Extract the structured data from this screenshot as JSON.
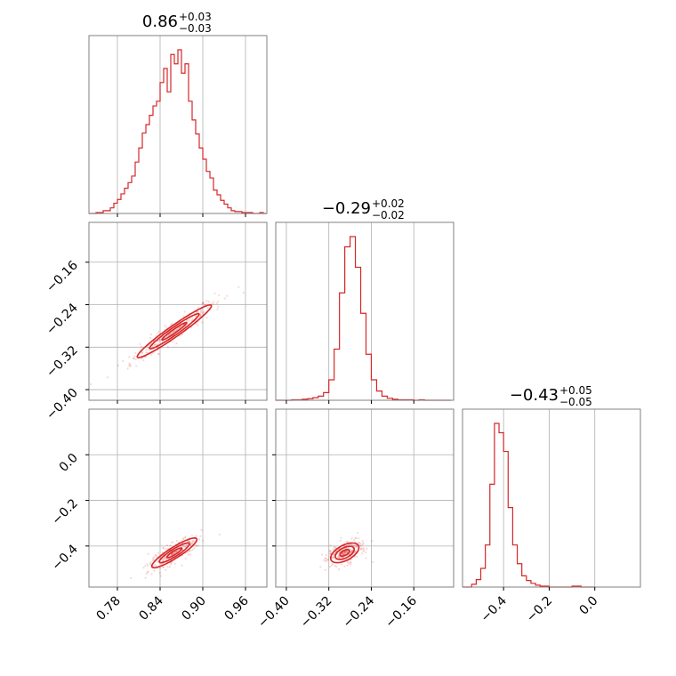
{
  "chart_data": {
    "type": "corner",
    "color": "#d62728",
    "parameters": [
      {
        "id": "p0",
        "title_value": "0.86",
        "title_plus": "+0.03",
        "title_minus": "−0.03",
        "range": [
          0.74,
          0.99
        ],
        "ticks": [
          0.78,
          0.84,
          0.9,
          0.96
        ],
        "tick_labels": [
          "0.78",
          "0.84",
          "0.90",
          "0.96"
        ],
        "hist": {
          "bins": [
            0.74,
            0.745,
            0.75,
            0.755,
            0.76,
            0.765,
            0.77,
            0.775,
            0.78,
            0.785,
            0.79,
            0.795,
            0.8,
            0.805,
            0.81,
            0.815,
            0.82,
            0.825,
            0.83,
            0.835,
            0.84,
            0.845,
            0.85,
            0.855,
            0.86,
            0.865,
            0.87,
            0.875,
            0.88,
            0.885,
            0.89,
            0.895,
            0.9,
            0.905,
            0.91,
            0.915,
            0.92,
            0.925,
            0.93,
            0.935,
            0.94,
            0.945,
            0.95,
            0.955,
            0.96,
            0.965,
            0.97,
            0.975,
            0.98,
            0.985,
            0.99
          ],
          "counts": [
            0,
            0,
            1,
            1,
            3,
            3,
            6,
            11,
            15,
            21,
            27,
            33,
            40,
            55,
            70,
            86,
            95,
            105,
            115,
            120,
            140,
            155,
            130,
            170,
            160,
            175,
            150,
            160,
            120,
            100,
            85,
            70,
            58,
            45,
            38,
            25,
            20,
            14,
            10,
            6,
            3,
            2,
            2,
            1,
            1,
            1,
            0,
            0,
            1,
            0
          ]
        }
      },
      {
        "id": "p1",
        "title_value": "−0.29",
        "title_plus": "+0.02",
        "title_minus": "−0.02",
        "range": [
          -0.42,
          -0.085
        ],
        "ticks": [
          -0.4,
          -0.32,
          -0.24,
          -0.16
        ],
        "tick_labels": [
          "−0.40",
          "−0.32",
          "−0.24",
          "−0.16"
        ],
        "hist": {
          "bins": [
            -0.42,
            -0.41,
            -0.4,
            -0.39,
            -0.38,
            -0.37,
            -0.36,
            -0.35,
            -0.34,
            -0.33,
            -0.32,
            -0.31,
            -0.3,
            -0.29,
            -0.28,
            -0.27,
            -0.26,
            -0.25,
            -0.24,
            -0.23,
            -0.22,
            -0.21,
            -0.2,
            -0.19,
            -0.18,
            -0.17,
            -0.16,
            -0.15,
            -0.14,
            -0.13,
            -0.12,
            -0.11,
            -0.1,
            -0.09
          ],
          "counts": [
            0,
            0,
            0,
            1,
            1,
            2,
            3,
            5,
            8,
            15,
            40,
            100,
            210,
            300,
            320,
            260,
            170,
            90,
            40,
            18,
            8,
            4,
            2,
            1,
            1,
            1,
            0,
            1,
            0,
            0,
            0,
            0,
            0
          ]
        }
      },
      {
        "id": "p2",
        "title_value": "−0.43",
        "title_plus": "+0.05",
        "title_minus": "−0.05",
        "range": [
          -0.58,
          0.2
        ],
        "ticks": [
          -0.4,
          -0.2,
          0.0
        ],
        "tick_labels": [
          "−0.4",
          "−0.2",
          "0.0"
        ],
        "hist": {
          "bins": [
            -0.58,
            -0.56,
            -0.54,
            -0.52,
            -0.5,
            -0.48,
            -0.46,
            -0.44,
            -0.42,
            -0.4,
            -0.38,
            -0.36,
            -0.34,
            -0.32,
            -0.3,
            -0.28,
            -0.26,
            -0.24,
            -0.22,
            -0.2,
            -0.18,
            -0.16,
            -0.14,
            -0.12,
            -0.1,
            -0.08,
            -0.06,
            -0.04,
            -0.02,
            0.0
          ],
          "counts": [
            0,
            0,
            3,
            8,
            20,
            45,
            110,
            175,
            165,
            145,
            85,
            45,
            25,
            12,
            7,
            4,
            2,
            1,
            1,
            0,
            0,
            0,
            0,
            0,
            1,
            1,
            0,
            0,
            0
          ]
        }
      }
    ],
    "y_ticks_left": {
      "p1": [
        "−0.16",
        "−0.24",
        "−0.32",
        "−0.40"
      ],
      "p2": [
        "0.0",
        "−0.2",
        "−0.4"
      ]
    },
    "pairs": [
      {
        "x": "p0",
        "y": "p1",
        "center": [
          0.86,
          -0.29
        ],
        "slope": 0.95,
        "sigma_major": 0.034,
        "sigma_minor": 0.0045,
        "contour_levels": [
          0.5,
          1.0,
          1.5
        ]
      },
      {
        "x": "p0",
        "y": "p2",
        "center": [
          0.86,
          -0.43
        ],
        "slope": 2.2,
        "sigma_major": 0.034,
        "sigma_minor": 0.006,
        "contour_levels": [
          0.5,
          1.0,
          1.5
        ]
      },
      {
        "x": "p1",
        "y": "p2",
        "center": [
          -0.29,
          -0.43
        ],
        "slope": 2.3,
        "sigma_major": 0.022,
        "sigma_minor": 0.01,
        "contour_levels": [
          0.5,
          1.0,
          1.5
        ]
      }
    ]
  }
}
